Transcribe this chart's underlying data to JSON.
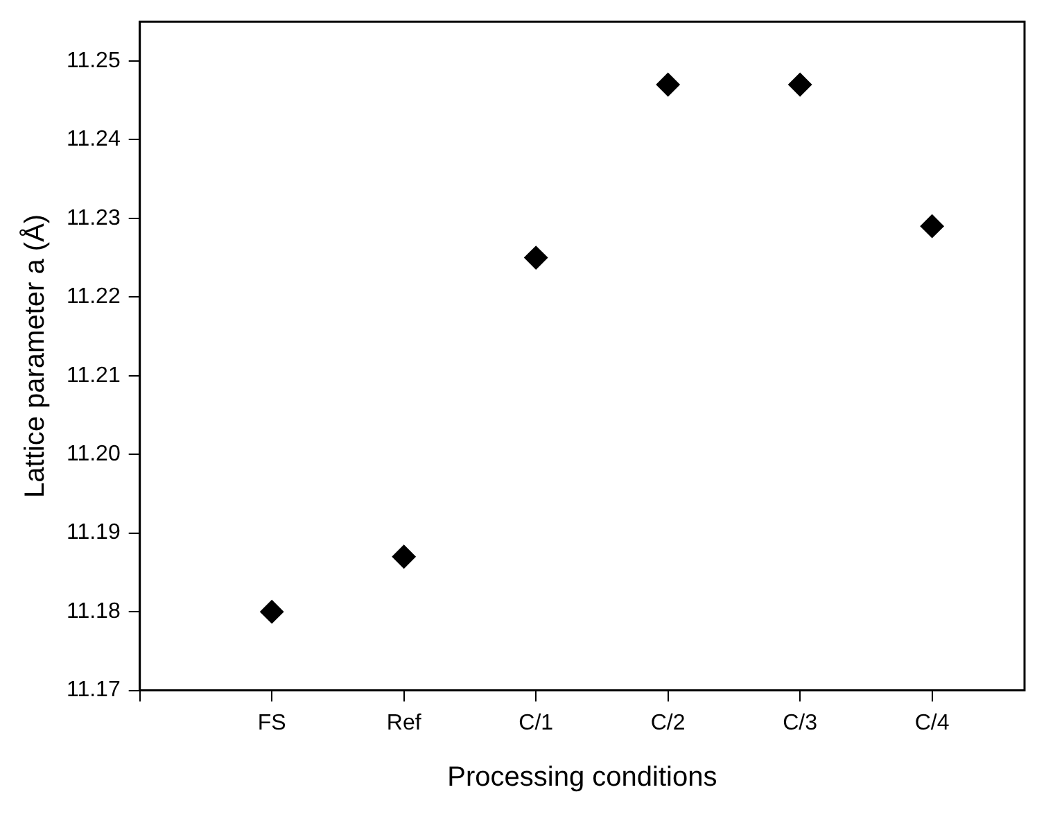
{
  "chart_data": {
    "type": "scatter",
    "xlabel": "Processing conditions",
    "ylabel": "Lattice parameter a (Å)",
    "categories": [
      "FS",
      "Ref",
      "C/1",
      "C/2",
      "C/3",
      "C/4"
    ],
    "series": [
      {
        "color": "#000000",
        "values": [
          11.18,
          11.187,
          11.225,
          11.247,
          11.247,
          11.229
        ]
      }
    ],
    "ylim": [
      11.17,
      11.255
    ],
    "yticks": [
      11.17,
      11.18,
      11.19,
      {
        "value": 11.2,
        "label": "11.20"
      },
      11.21,
      11.22,
      11.23,
      11.24,
      11.25
    ],
    "marker": "diamond",
    "grid": false,
    "legend": false
  }
}
